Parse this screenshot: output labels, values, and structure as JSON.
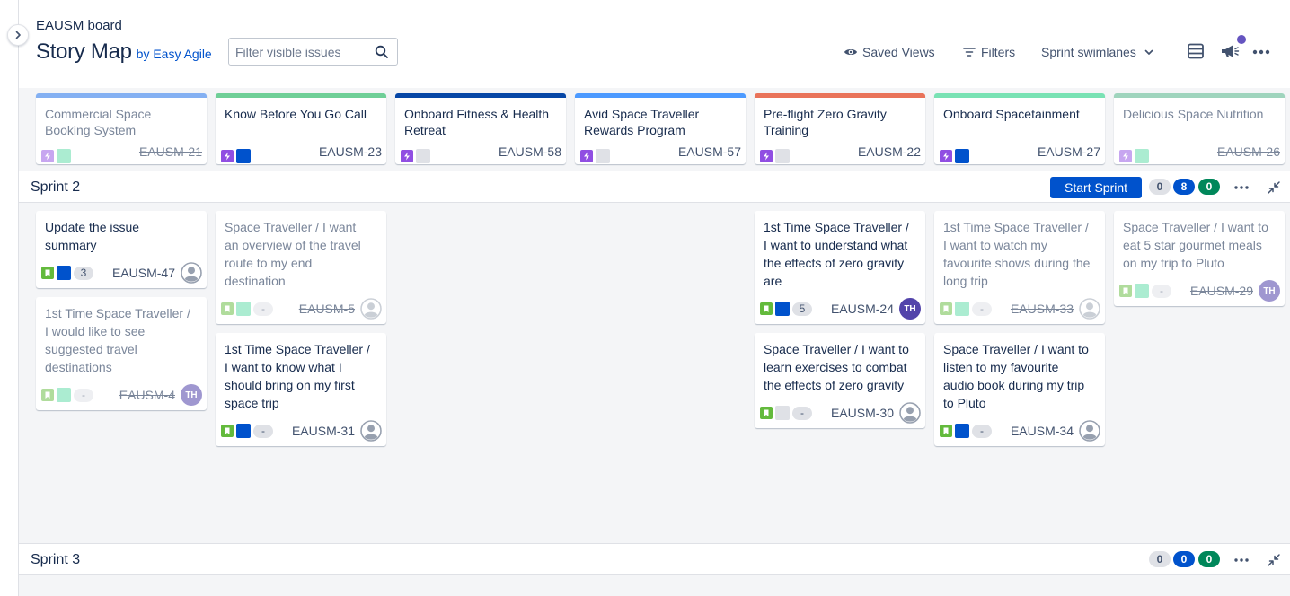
{
  "header": {
    "board_name": "EAUSM board",
    "title": "Story Map",
    "byline": "by Easy Agile",
    "search_placeholder": "Filter visible issues",
    "saved_views": "Saved Views",
    "filters": "Filters",
    "swimlanes": "Sprint swimlanes"
  },
  "colors": {
    "primary": "#0052cc",
    "epic_purple": "#904ee2",
    "story_green": "#63ba3c",
    "done_green": "#00875a",
    "avatar_purple": "#5243aa"
  },
  "epics": [
    {
      "title": "Commercial Space Booking System",
      "key": "EAUSM-21",
      "color": "#84b0f2",
      "status": "#57d9a3",
      "done": true
    },
    {
      "title": "Know Before You Go Call",
      "key": "EAUSM-23",
      "color": "#6fcf97",
      "status": "#0052cc",
      "done": false
    },
    {
      "title": "Onboard Fitness & Health Retreat",
      "key": "EAUSM-58",
      "color": "#0747a6",
      "status": "#dfe1e6",
      "done": false
    },
    {
      "title": "Avid Space Traveller Rewards Program",
      "key": "EAUSM-57",
      "color": "#4c9aff",
      "status": "#dfe1e6",
      "done": false
    },
    {
      "title": "Pre-flight Zero Gravity Training",
      "key": "EAUSM-22",
      "color": "#e9735a",
      "status": "#dfe1e6",
      "done": false
    },
    {
      "title": "Onboard Spacetainment",
      "key": "EAUSM-27",
      "color": "#79e2b4",
      "status": "#0052cc",
      "done": false
    },
    {
      "title": "Delicious Space Nutrition",
      "key": "EAUSM-26",
      "color": "#9fd4bd",
      "status": "#57d9a3",
      "done": true
    }
  ],
  "sprints": [
    {
      "name": "Sprint 2",
      "start_label": "Start Sprint",
      "counts": {
        "todo": "0",
        "in_progress": "8",
        "done": "0"
      },
      "cards": [
        {
          "title": "Update the issue summary",
          "key": "EAUSM-47",
          "points": "3",
          "status": "#0052cc",
          "assignee": "unassigned",
          "done": false
        },
        {
          "title": "1st Time Space Traveller / I would like to see suggested travel destinations",
          "key": "EAUSM-4",
          "points": "-",
          "status": "#57d9a3",
          "assignee": "TH",
          "done": true
        },
        {
          "title": "Space Traveller / I want an overview of the travel route to my end destination",
          "key": "EAUSM-5",
          "points": "-",
          "status": "#57d9a3",
          "assignee": "unassigned",
          "done": true
        },
        {
          "title": "1st Time Space Traveller / I want to know what I should bring on my first space trip",
          "key": "EAUSM-31",
          "points": "-",
          "status": "#0052cc",
          "assignee": "unassigned",
          "done": false
        },
        {
          "title": "1st Time Space Traveller / I want to understand what the effects of zero gravity are",
          "key": "EAUSM-24",
          "points": "5",
          "status": "#0052cc",
          "assignee": "TH",
          "done": false
        },
        {
          "title": "Space Traveller / I want to learn exercises to combat the effects of zero gravity",
          "key": "EAUSM-30",
          "points": "-",
          "status": "#dfe1e6",
          "assignee": "unassigned",
          "done": false
        },
        {
          "title": "1st Time Space Traveller / I want to watch my favourite shows during the long trip",
          "key": "EAUSM-33",
          "points": "-",
          "status": "#57d9a3",
          "assignee": "unassigned",
          "done": true
        },
        {
          "title": "Space Traveller / I want to listen to my favourite audio book during my trip to Pluto",
          "key": "EAUSM-34",
          "points": "-",
          "status": "#0052cc",
          "assignee": "unassigned",
          "done": false
        },
        {
          "title": "Space Traveller / I want to eat 5 star gourmet meals on my trip to Pluto",
          "key": "EAUSM-29",
          "points": "-",
          "status": "#57d9a3",
          "assignee": "TH",
          "done": true
        }
      ]
    },
    {
      "name": "Sprint 3",
      "counts": {
        "todo": "0",
        "in_progress": "0",
        "done": "0"
      }
    }
  ]
}
